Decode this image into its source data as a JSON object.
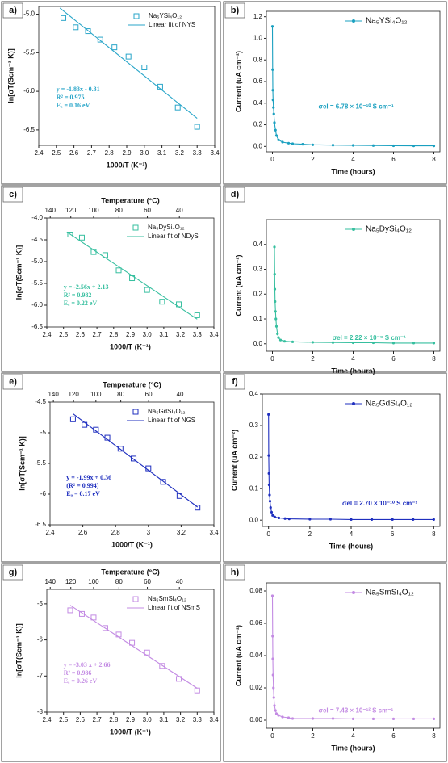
{
  "chart_data": [
    {
      "type": "scatter",
      "panel_label": "a)",
      "xlabel": "1000/T (K⁻¹)",
      "ylabel": "ln[σT(Scm⁻¹ K)]",
      "xlim": [
        2.4,
        3.4
      ],
      "xticks": [
        2.4,
        2.5,
        2.6,
        2.7,
        2.8,
        2.9,
        {
          "value": 3,
          "label": "3.0"
        },
        3.1,
        3.2,
        3.3,
        3.4
      ],
      "ylim": [
        -6.7,
        -4.9
      ],
      "yticks": [
        {
          "value": -5,
          "label": "-5.0"
        },
        -5.5,
        {
          "value": -6,
          "label": "-6.0"
        },
        -6.5
      ],
      "color": "#2aa6c9",
      "legend": "upper right",
      "series": [
        {
          "name": "Na₅YSi₄O₁₂",
          "marker": "open-square",
          "x": [
            2.54,
            2.61,
            2.68,
            2.75,
            2.83,
            2.91,
            3.0,
            3.09,
            3.19,
            3.3
          ],
          "values": [
            -5.05,
            -5.17,
            -5.22,
            -5.33,
            -5.43,
            -5.55,
            -5.69,
            -5.94,
            -6.21,
            -6.46
          ]
        },
        {
          "name": "Linear fit of NYS",
          "marker": "none",
          "x": [
            2.52,
            3.3
          ],
          "values": [
            -4.92,
            -6.35
          ]
        }
      ],
      "annotations": [
        "y = -1.83x - 0.31",
        "R² = 0.975",
        "Eₐ = 0.16 eV"
      ]
    },
    {
      "type": "line",
      "panel_label": "b)",
      "xlabel": "Time (hours)",
      "ylabel": "Current (uA cm⁻²)",
      "xlim": [
        -0.3,
        8.3
      ],
      "xticks": [
        0,
        2,
        4,
        6,
        8
      ],
      "ylim": [
        -0.05,
        1.25
      ],
      "yticks": [
        {
          "value": 0,
          "label": "0.0"
        },
        0.2,
        0.4,
        0.6,
        0.8,
        {
          "value": 1,
          "label": "1.0"
        },
        1.2
      ],
      "color": "#1aa0c0",
      "legend": "upper right",
      "series": [
        {
          "name": "Na₅YSi₄O₁₂",
          "marker": "dot",
          "x": [
            0,
            0.01,
            0.02,
            0.03,
            0.05,
            0.07,
            0.1,
            0.15,
            0.2,
            0.3,
            0.5,
            0.8,
            1,
            1.5,
            2,
            3,
            4,
            5,
            6,
            7,
            8
          ],
          "values": [
            1.11,
            0.71,
            0.52,
            0.43,
            0.36,
            0.3,
            0.22,
            0.15,
            0.1,
            0.06,
            0.04,
            0.03,
            0.025,
            0.02,
            0.015,
            0.012,
            0.01,
            0.008,
            0.006,
            0.005,
            0.005
          ]
        }
      ],
      "annotations": [
        "σel = 6.78 × 10⁻¹⁰ S cm⁻¹"
      ]
    },
    {
      "type": "scatter",
      "panel_label": "c)",
      "xlabel": "1000/T (K⁻¹)",
      "ylabel": "ln[σT(Scm⁻¹ K)]",
      "x2label": "Temperature (°C)",
      "xlim": [
        2.4,
        3.4
      ],
      "xticks": [
        2.4,
        2.5,
        2.6,
        2.7,
        2.8,
        2.9,
        {
          "value": 3,
          "label": "3.0"
        },
        3.1,
        3.2,
        3.3,
        3.4
      ],
      "x2ticks": [
        140,
        120,
        100,
        80,
        60,
        40
      ],
      "ylim": [
        -6.5,
        -4.0
      ],
      "yticks": [
        {
          "value": -4,
          "label": "-4.0"
        },
        -4.5,
        {
          "value": -5,
          "label": "-5.0"
        },
        -5.5,
        {
          "value": -6,
          "label": "-6.0"
        },
        -6.5
      ],
      "color": "#36bf9f",
      "legend": "upper right",
      "series": [
        {
          "name": "Na₅DySi₄O₁₂",
          "marker": "open-square",
          "x": [
            2.54,
            2.61,
            2.68,
            2.75,
            2.83,
            2.91,
            3.0,
            3.09,
            3.19,
            3.3
          ],
          "values": [
            -4.38,
            -4.45,
            -4.78,
            -4.85,
            -5.2,
            -5.38,
            -5.65,
            -5.92,
            -5.98,
            -6.23
          ]
        },
        {
          "name": "Linear fit of NDyS",
          "marker": "none",
          "x": [
            2.52,
            3.3
          ],
          "values": [
            -4.32,
            -6.32
          ]
        }
      ],
      "annotations": [
        "y = -2.56x + 2.13",
        "R² = 0.982",
        "Eₐ = 0.22 eV"
      ]
    },
    {
      "type": "line",
      "panel_label": "d)",
      "xlabel": "Time (hours)",
      "ylabel": "Current (uA cm⁻²)",
      "xlim": [
        -0.3,
        8.3
      ],
      "xticks": [
        0,
        2,
        4,
        6,
        8
      ],
      "ylim": [
        -0.03,
        0.5
      ],
      "yticks": [
        {
          "value": 0,
          "label": "0.0"
        },
        0.1,
        0.2,
        0.3,
        0.4
      ],
      "color": "#36bf9f",
      "legend": "upper right",
      "series": [
        {
          "name": "Na₅DySi₄O₁₂",
          "marker": "dot",
          "x": [
            0.1,
            0.11,
            0.12,
            0.13,
            0.15,
            0.17,
            0.2,
            0.25,
            0.3,
            0.4,
            0.6,
            1,
            2,
            3,
            4,
            5,
            6,
            7,
            8
          ],
          "values": [
            0.39,
            0.28,
            0.22,
            0.17,
            0.13,
            0.1,
            0.07,
            0.04,
            0.025,
            0.015,
            0.01,
            0.008,
            0.006,
            0.005,
            0.004,
            0.004,
            0.003,
            0.003,
            0.003
          ]
        }
      ],
      "annotations": [
        "σel = 2.22 × 10⁻⁹ S cm⁻¹"
      ]
    },
    {
      "type": "scatter",
      "panel_label": "e)",
      "xlabel": "1000/T (K⁻¹)",
      "ylabel": "ln[σT(Scm⁻¹ K)]",
      "x2label": "Temperature (°C)",
      "xlim": [
        2.4,
        3.4
      ],
      "xticks": [
        2.4,
        2.6,
        2.8,
        3,
        3.2,
        3.4
      ],
      "x2ticks": [
        140,
        120,
        100,
        80,
        60,
        40
      ],
      "ylim": [
        -6.5,
        -4.5
      ],
      "yticks": [
        -4.5,
        -5,
        -5.5,
        -6,
        -6.5
      ],
      "color": "#1f2fbf",
      "legend": "upper right",
      "series": [
        {
          "name": "Na₅GdSi₄O₁₂",
          "marker": "open-square",
          "x": [
            2.54,
            2.61,
            2.68,
            2.75,
            2.83,
            2.91,
            3.0,
            3.09,
            3.19,
            3.3
          ],
          "values": [
            -4.78,
            -4.87,
            -4.95,
            -5.08,
            -5.26,
            -5.42,
            -5.58,
            -5.8,
            -6.03,
            -6.22
          ]
        },
        {
          "name": "Linear fit of NGS",
          "marker": "none",
          "x": [
            2.54,
            3.3
          ],
          "values": [
            -4.69,
            -6.21
          ]
        }
      ],
      "annotations": [
        "y = -1.99x + 0.36",
        "(R² = 0.994)",
        "Eₐ = 0.17 eV"
      ]
    },
    {
      "type": "line",
      "panel_label": "f)",
      "xlabel": "Time (hours)",
      "ylabel": "Current (uA cm⁻²)",
      "xlim": [
        -0.3,
        8.3
      ],
      "xticks": [
        0,
        2,
        4,
        6,
        8
      ],
      "ylim": [
        -0.02,
        0.4
      ],
      "yticks": [
        {
          "value": 0,
          "label": "0.0"
        },
        0.1,
        0.2,
        0.3,
        0.4
      ],
      "color": "#1f2fbf",
      "legend": "upper right",
      "series": [
        {
          "name": "Na₅GdSi₄O₁₂",
          "marker": "dot",
          "x": [
            0,
            0.01,
            0.02,
            0.03,
            0.05,
            0.07,
            0.1,
            0.15,
            0.2,
            0.3,
            0.5,
            0.8,
            1,
            2,
            3,
            4,
            5,
            6,
            7,
            8
          ],
          "values": [
            0.335,
            0.205,
            0.148,
            0.112,
            0.08,
            0.06,
            0.04,
            0.025,
            0.015,
            0.01,
            0.007,
            0.005,
            0.004,
            0.003,
            0.003,
            0.002,
            0.002,
            0.002,
            0.002,
            0.002
          ]
        }
      ],
      "annotations": [
        "σel = 2.70 × 10⁻¹⁰ S cm⁻¹"
      ]
    },
    {
      "type": "scatter",
      "panel_label": "g)",
      "xlabel": "1000/T (K⁻¹)",
      "ylabel": "ln[σT(Scm⁻¹ K)]",
      "x2label": "Temperature (°C)",
      "xlim": [
        2.4,
        3.4
      ],
      "xticks": [
        2.4,
        2.5,
        2.6,
        2.7,
        2.8,
        2.9,
        {
          "value": 3,
          "label": "3.0"
        },
        3.1,
        3.2,
        3.3,
        3.4
      ],
      "x2ticks": [
        140,
        120,
        100,
        80,
        60,
        40
      ],
      "ylim": [
        -8,
        -4.6
      ],
      "yticks": [
        -5,
        -6,
        -7,
        -8
      ],
      "color": "#c38be3",
      "legend": "upper right",
      "series": [
        {
          "name": "Na₅SmSi₄O₁₂",
          "marker": "open-square",
          "x": [
            2.54,
            2.61,
            2.68,
            2.75,
            2.83,
            2.91,
            3.0,
            3.09,
            3.19,
            3.3
          ],
          "values": [
            -5.18,
            -5.28,
            -5.38,
            -5.67,
            -5.85,
            -6.08,
            -6.35,
            -6.72,
            -7.08,
            -7.4
          ]
        },
        {
          "name": "Linear fit of NSmS",
          "marker": "none",
          "x": [
            2.54,
            3.3
          ],
          "values": [
            -5.04,
            -7.34
          ]
        }
      ],
      "annotations": [
        "y = -3.03 x + 2.66",
        "R² = 0.986",
        "Eₐ = 0.26 eV"
      ]
    },
    {
      "type": "line",
      "panel_label": "h)",
      "xlabel": "Time (hours)",
      "ylabel": "Current (uA cm⁻²)",
      "xlim": [
        -0.3,
        8.3
      ],
      "xticks": [
        0,
        2,
        4,
        6,
        8
      ],
      "ylim": [
        -0.005,
        0.085
      ],
      "yticks": [
        {
          "value": 0,
          "label": "0.00"
        },
        0.02,
        0.04,
        0.06,
        0.08
      ],
      "color": "#c38be3",
      "legend": "upper right",
      "series": [
        {
          "name": "Na₅SmSi₄O₁₂",
          "marker": "dot",
          "x": [
            0,
            0.01,
            0.02,
            0.03,
            0.05,
            0.07,
            0.1,
            0.15,
            0.2,
            0.3,
            0.5,
            0.8,
            1,
            2,
            3,
            4,
            5,
            6,
            7,
            8
          ],
          "values": [
            0.077,
            0.052,
            0.038,
            0.028,
            0.02,
            0.014,
            0.009,
            0.006,
            0.004,
            0.003,
            0.002,
            0.0015,
            0.001,
            0.001,
            0.001,
            0.0008,
            0.0008,
            0.0008,
            0.0008,
            0.0008
          ]
        }
      ],
      "annotations": [
        "σel = 7.43 × 10⁻¹² S cm⁻¹"
      ]
    }
  ]
}
